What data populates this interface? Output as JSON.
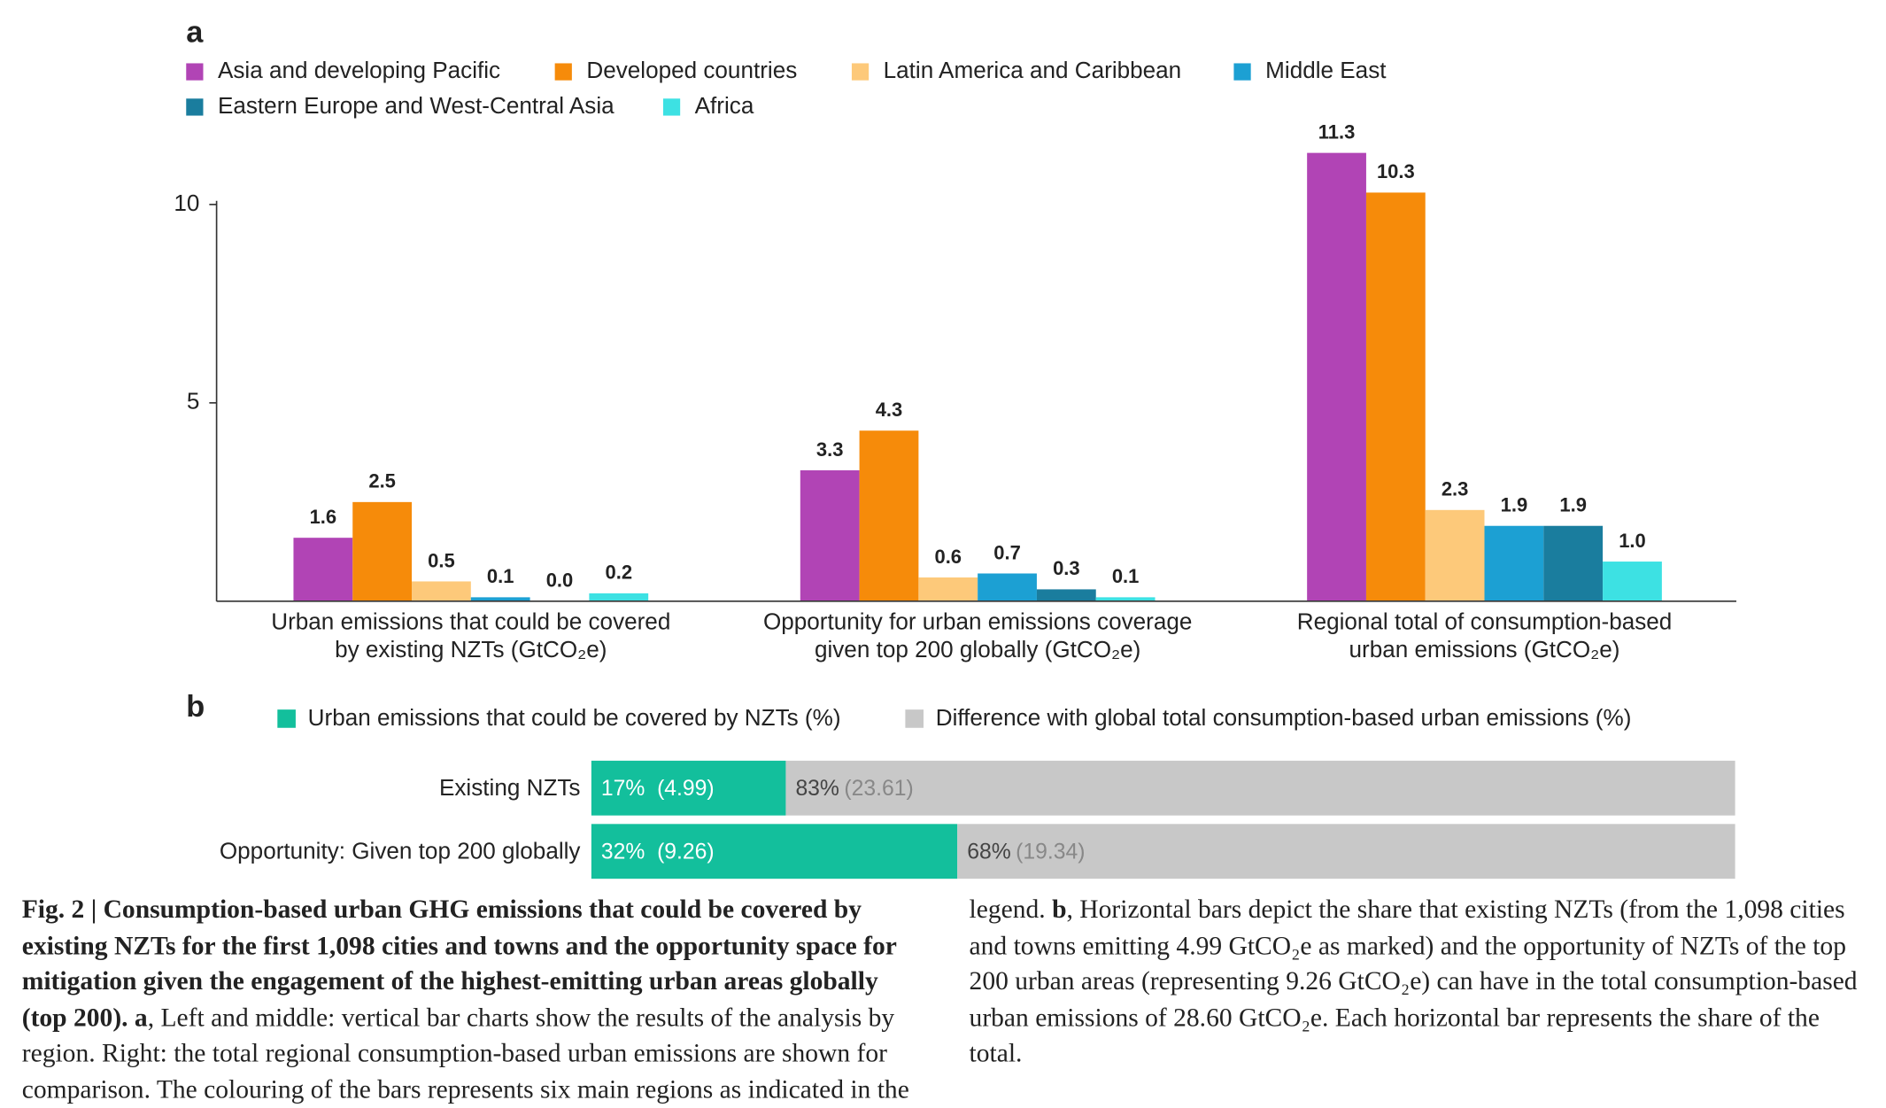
{
  "chart_data": [
    {
      "type": "bar",
      "panel": "a",
      "categories": [
        [
          "Urban emissions that could be covered",
          "by existing NZTs (GtCO₂e)"
        ],
        [
          "Opportunity for urban emissions coverage",
          "given top 200 globally (GtCO₂e)"
        ],
        [
          "Regional total of consumption-based",
          "urban emissions (GtCO₂e)"
        ]
      ],
      "series": [
        {
          "name": "Asia and developing Pacific",
          "color": "#b144b5",
          "values": [
            1.6,
            3.3,
            11.3
          ],
          "value_labels": [
            "1.6",
            "3.3",
            "11.3"
          ]
        },
        {
          "name": "Developed countries",
          "color": "#f68b0a",
          "values": [
            2.5,
            4.3,
            10.3
          ],
          "value_labels": [
            "2.5",
            "4.3",
            "10.3"
          ]
        },
        {
          "name": "Latin America and Caribbean",
          "color": "#fdc97a",
          "values": [
            0.5,
            0.6,
            2.3
          ],
          "value_labels": [
            "0.5",
            "0.6",
            "2.3"
          ]
        },
        {
          "name": "Middle East",
          "color": "#1ca0d3",
          "values": [
            0.1,
            0.7,
            1.9
          ],
          "value_labels": [
            "0.1",
            "0.7",
            "1.9"
          ]
        },
        {
          "name": "Eastern Europe and West-Central Asia",
          "color": "#1a7d9e",
          "values": [
            0.0,
            0.3,
            1.9
          ],
          "value_labels": [
            "0.0",
            "0.3",
            "1.9"
          ]
        },
        {
          "name": "Africa",
          "color": "#3de1e3",
          "values": [
            0.2,
            0.1,
            1.0
          ],
          "value_labels": [
            "0.2",
            "0.1",
            "1.0"
          ]
        }
      ],
      "ylim": [
        0,
        10
      ],
      "yticks": [
        5,
        10
      ]
    },
    {
      "type": "barh",
      "panel": "b",
      "stacked": true,
      "categories": [
        "Existing NZTs",
        "Opportunity: Given top 200 globally"
      ],
      "series": [
        {
          "name": "Urban emissions that could be covered by NZTs (%)",
          "color": "#13bf9c",
          "values": [
            17,
            32
          ],
          "value_labels": [
            "17%",
            "32%"
          ],
          "amounts": [
            4.99,
            9.26
          ],
          "amount_labels": [
            "(4.99)",
            "(9.26)"
          ]
        },
        {
          "name": "Difference with global total consumption-based urban emissions (%)",
          "color": "#c8c8c8",
          "values": [
            83,
            68
          ],
          "value_labels": [
            "83%",
            "68%"
          ],
          "amounts": [
            23.61,
            19.34
          ],
          "amount_labels": [
            "(23.61)",
            "(19.34)"
          ]
        }
      ],
      "xlim": [
        0,
        100
      ]
    }
  ],
  "caption": {
    "label": "Fig. 2 |",
    "title": "Consumption-based urban GHG emissions that could be covered by existing NZTs for the first 1,098 cities and towns and the opportunity space for mitigation given the engagement of the highest-emitting urban areas globally (top 200).",
    "panels": [
      {
        "letter": "a",
        "text": ", Left and middle: vertical bar charts show the results of the analysis by region. Right: the total regional consumption-based urban emissions are shown for comparison. The colouring of the bars represents six main regions as indicated in the legend."
      },
      {
        "letter": "b",
        "text": ", Horizontal bars depict the share that existing NZTs (from the 1,098 cities and towns emitting 4.99 GtCO₂e as marked) and the opportunity of NZTs of the top 200 urban areas (representing 9.26 GtCO₂e) can have in the total consumption-based urban emissions of 28.60 GtCO₂e. Each horizontal bar represents the share of the total."
      }
    ]
  }
}
